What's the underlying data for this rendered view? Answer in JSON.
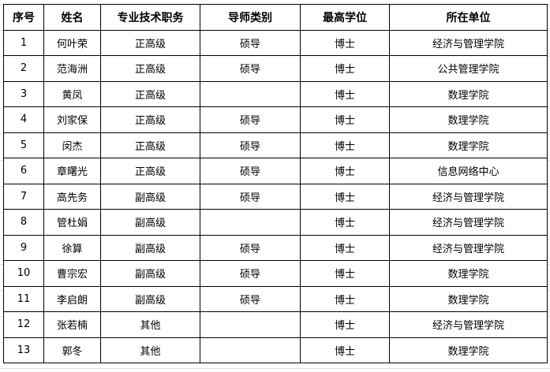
{
  "headers": [
    "序号",
    "姓名",
    "专业技术职务",
    "导师类别",
    "最高学位",
    "所在单位"
  ],
  "rows": [
    [
      "1",
      "何叶荣",
      "正高级",
      "硕导",
      "博士",
      "经济与管理学院"
    ],
    [
      "2",
      "范海洲",
      "正高级",
      "硕导",
      "博士",
      "公共管理学院"
    ],
    [
      "3",
      "黄凤",
      "正高级",
      "",
      "博士",
      "数理学院"
    ],
    [
      "4",
      "刘家保",
      "正高级",
      "硕导",
      "博士",
      "数理学院"
    ],
    [
      "5",
      "闵杰",
      "正高级",
      "硕导",
      "博士",
      "数理学院"
    ],
    [
      "6",
      "章曙光",
      "正高级",
      "硕导",
      "博士",
      "信息网络中心"
    ],
    [
      "7",
      "高先务",
      "副高级",
      "硕导",
      "博士",
      "经济与管理学院"
    ],
    [
      "8",
      "管杜娟",
      "副高级",
      "",
      "博士",
      "经济与管理学院"
    ],
    [
      "9",
      "徐算",
      "副高级",
      "硕导",
      "博士",
      "经济与管理学院"
    ],
    [
      "10",
      "曹宗宏",
      "副高级",
      "硕导",
      "博士",
      "数理学院"
    ],
    [
      "11",
      "李启朗",
      "副高级",
      "硕导",
      "博士",
      "数理学院"
    ],
    [
      "12",
      "张若楠",
      "其他",
      "",
      "博士",
      "经济与管理学院"
    ],
    [
      "13",
      "郭冬",
      "其他",
      "",
      "博士",
      "数理学院"
    ]
  ]
}
